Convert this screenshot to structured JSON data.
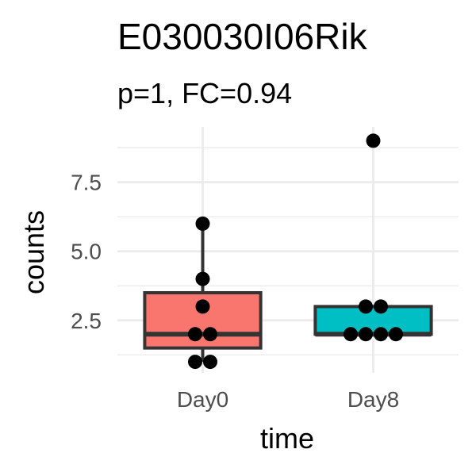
{
  "chart_data": {
    "type": "box",
    "title": "E030030I06Rik",
    "subtitle": "p=1, FC=0.94",
    "xlabel": "time",
    "ylabel": "counts",
    "categories": [
      "Day0",
      "Day8"
    ],
    "ylim": [
      0.6,
      9.5
    ],
    "yticks": [
      2.5,
      5.0,
      7.5
    ],
    "ytick_labels": [
      "2.5",
      "5.0",
      "7.5"
    ],
    "grid": true,
    "legend": "none",
    "boxes": [
      {
        "category": "Day0",
        "q1": 1.5,
        "median": 2.0,
        "q3": 3.5,
        "whisker_low": 1.0,
        "whisker_high": 6.0,
        "color": "#F8766D"
      },
      {
        "category": "Day8",
        "q1": 2.0,
        "median": 2.0,
        "q3": 3.0,
        "whisker_low": 2.0,
        "whisker_high": 3.0,
        "color": "#00BFC4"
      }
    ],
    "points": [
      {
        "category": "Day0",
        "values": [
          1,
          1,
          2,
          2,
          3,
          4,
          6
        ]
      },
      {
        "category": "Day8",
        "values": [
          2,
          2,
          2,
          2,
          3,
          3,
          9
        ]
      }
    ]
  }
}
